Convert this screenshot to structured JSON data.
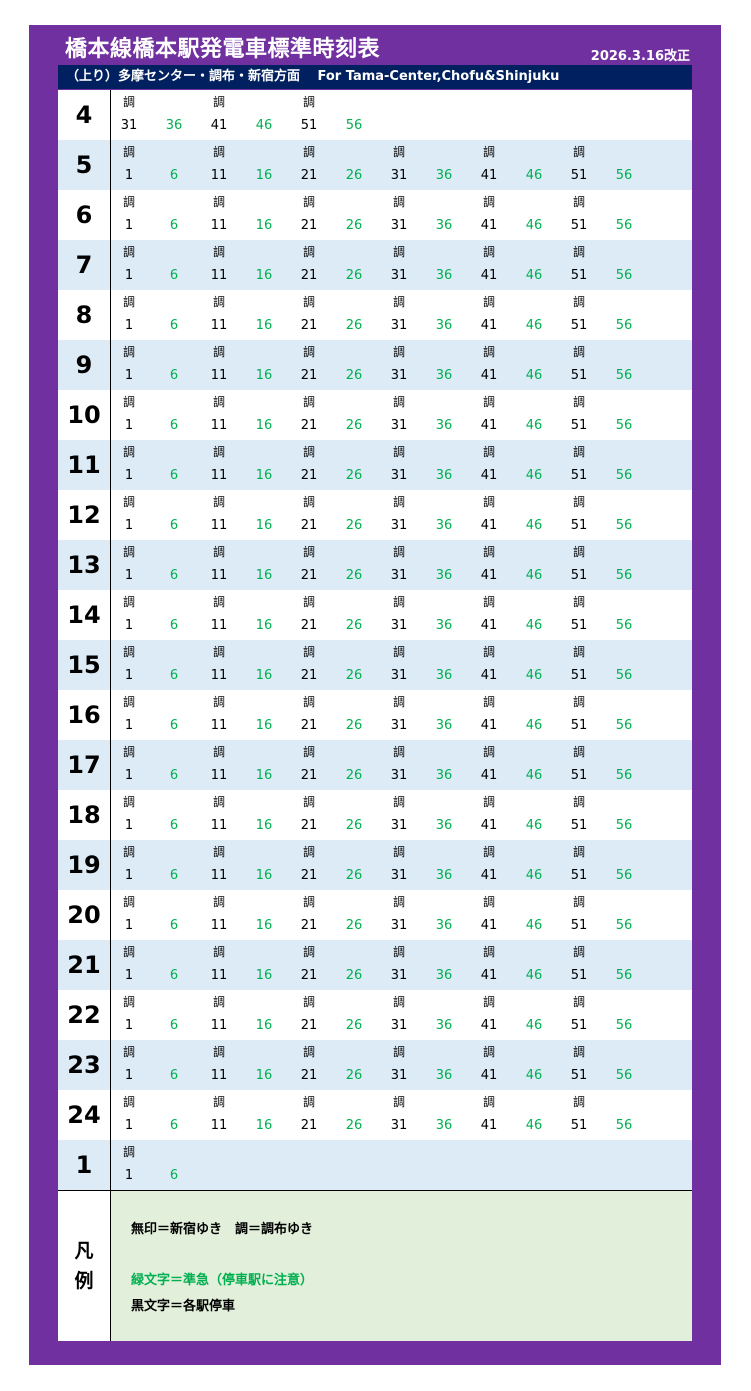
{
  "header": {
    "title": "橋本線橋本駅発電車標準時刻表",
    "revised": "2026.3.16改正",
    "direction": "（上り）多摩センター・調布・新宿方面　 For Tama-Center,Chofu&Shinjuku"
  },
  "colors": {
    "frame": "#7030a0",
    "header_bar": "#002060",
    "row_alt": "#ddebf7",
    "express_green": "#00b050",
    "legend_bg": "#e2efda"
  },
  "full_hour_minutes": [
    "1",
    "6",
    "11",
    "16",
    "21",
    "26",
    "31",
    "36",
    "41",
    "46",
    "51",
    "56"
  ],
  "rows": [
    {
      "hour": "4",
      "trains": [
        {
          "min": "31",
          "mark": "調",
          "express": false
        },
        {
          "min": "36",
          "mark": "",
          "express": true
        },
        {
          "min": "41",
          "mark": "調",
          "express": false
        },
        {
          "min": "46",
          "mark": "",
          "express": true
        },
        {
          "min": "51",
          "mark": "調",
          "express": false
        },
        {
          "min": "56",
          "mark": "",
          "express": true
        }
      ]
    },
    {
      "hour": "5",
      "full": true
    },
    {
      "hour": "6",
      "full": true
    },
    {
      "hour": "7",
      "full": true
    },
    {
      "hour": "8",
      "full": true
    },
    {
      "hour": "9",
      "full": true
    },
    {
      "hour": "10",
      "full": true
    },
    {
      "hour": "11",
      "full": true
    },
    {
      "hour": "12",
      "full": true
    },
    {
      "hour": "13",
      "full": true
    },
    {
      "hour": "14",
      "full": true
    },
    {
      "hour": "15",
      "full": true
    },
    {
      "hour": "16",
      "full": true
    },
    {
      "hour": "17",
      "full": true
    },
    {
      "hour": "18",
      "full": true
    },
    {
      "hour": "19",
      "full": true
    },
    {
      "hour": "20",
      "full": true
    },
    {
      "hour": "21",
      "full": true
    },
    {
      "hour": "22",
      "full": true
    },
    {
      "hour": "23",
      "full": true
    },
    {
      "hour": "24",
      "full": true
    },
    {
      "hour": "1",
      "trains": [
        {
          "min": "1",
          "mark": "調",
          "express": false
        },
        {
          "min": "6",
          "mark": "",
          "express": true
        }
      ]
    }
  ],
  "legend": {
    "label_1": "凡",
    "label_2": "例",
    "line_1": "無印＝新宿ゆき　調＝調布ゆき",
    "line_2": "緑文字＝準急（停車駅に注意）",
    "line_3": "黒文字＝各駅停車"
  }
}
